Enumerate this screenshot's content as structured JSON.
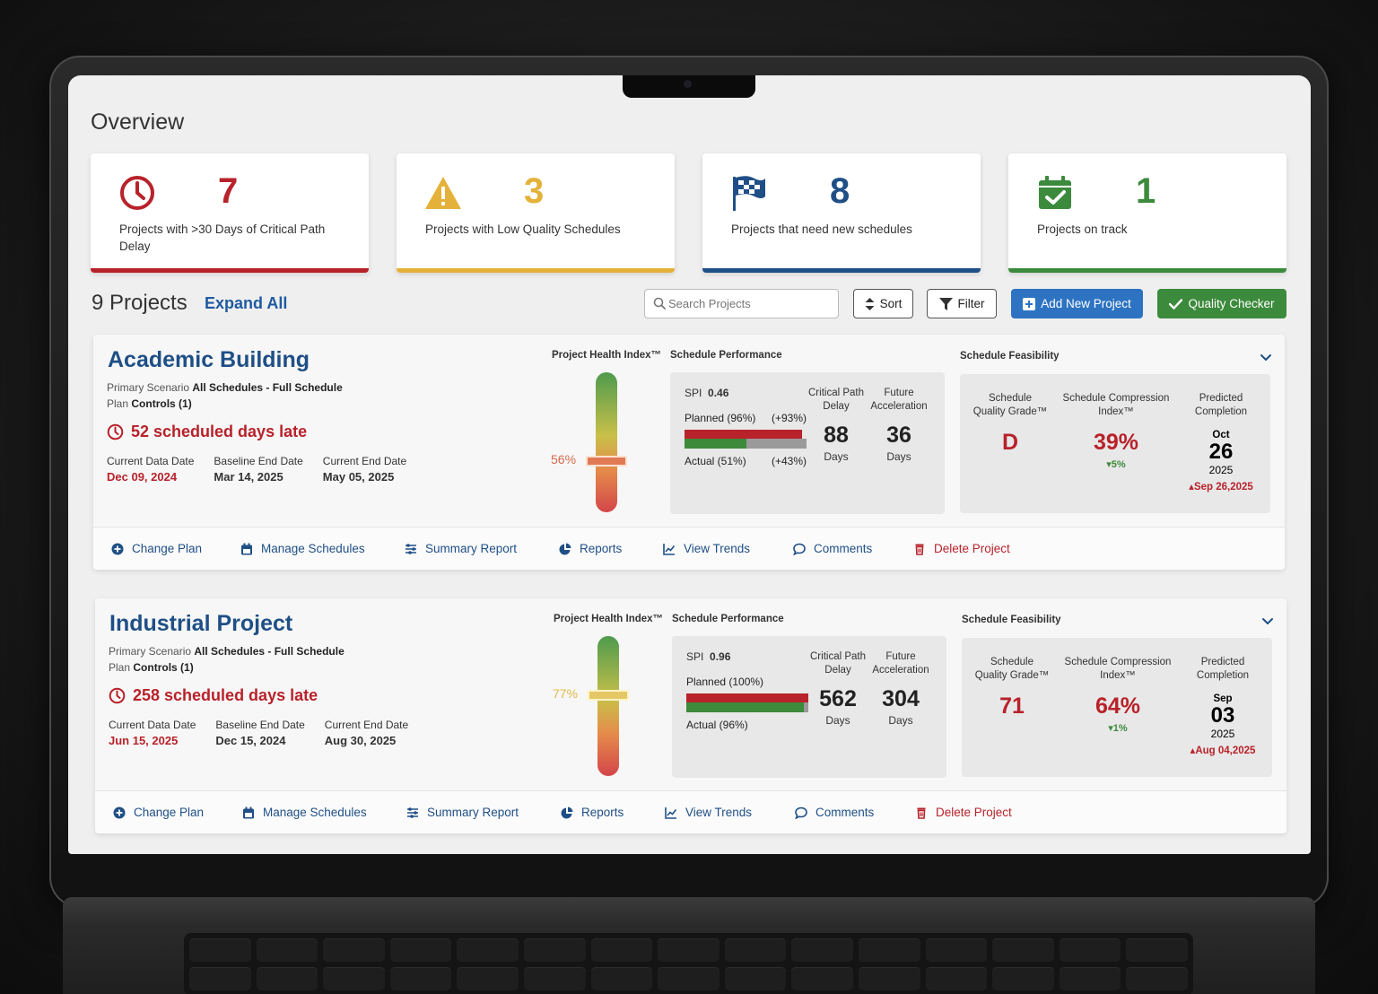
{
  "overview": {
    "title": "Overview"
  },
  "stats": [
    {
      "number": "7",
      "label": "Projects with >30 Days of Critical Path Delay",
      "color": "#b8222a",
      "icon": "clock-icon"
    },
    {
      "number": "3",
      "label": "Projects with Low Quality Schedules",
      "color": "#e4b23a",
      "icon": "warning-icon"
    },
    {
      "number": "8",
      "label": "Projects that need new schedules",
      "color": "#1f4f86",
      "icon": "checkered-flag-icon"
    },
    {
      "number": "1",
      "label": "Projects on track",
      "color": "#3c8a3c",
      "icon": "calendar-check-icon"
    }
  ],
  "toolbar": {
    "projects_count": "9 Projects",
    "expand_all": "Expand All",
    "search_placeholder": "Search Projects",
    "sort": "Sort",
    "filter": "Filter",
    "add_new": "Add New Project",
    "quality_checker": "Quality Checker"
  },
  "labels": {
    "primary_scenario": "Primary Scenario",
    "plan": "Plan",
    "current_data_date": "Current Data Date",
    "baseline_end_date": "Baseline End Date",
    "current_end_date": "Current End Date",
    "phi": "Project Health Index™",
    "schedule_performance": "Schedule Performance",
    "schedule_feasibility": "Schedule Feasibility",
    "spi": "SPI",
    "critical_path_delay_1": "Critical Path",
    "critical_path_delay_2": "Delay",
    "future_acceleration_1": "Future",
    "future_acceleration_2": "Acceleration",
    "days": "Days",
    "sqg_1": "Schedule",
    "sqg_2": "Quality Grade™",
    "sci_1": "Schedule Compression",
    "sci_2": "Index™",
    "predicted_1": "Predicted",
    "predicted_2": "Completion"
  },
  "actions": {
    "change_plan": "Change Plan",
    "manage_schedules": "Manage Schedules",
    "summary_report": "Summary Report",
    "reports": "Reports",
    "view_trends": "View Trends",
    "comments": "Comments",
    "delete_project": "Delete Project"
  },
  "projects": [
    {
      "name": "Academic Building",
      "scenario": "All Schedules - Full Schedule",
      "plan": "Controls (1)",
      "late": "52 scheduled days late",
      "current_data_date": "Dec 09, 2024",
      "baseline_end_date": "Mar 14, 2025",
      "current_end_date": "May 05, 2025",
      "health_pct": "56%",
      "health_value": 56,
      "spi": "0.46",
      "planned_label": "Planned (96%)",
      "planned_delta": "(+93%)",
      "actual_label": "Actual (51%)",
      "actual_delta": "(+43%)",
      "planned_pct": 96,
      "actual_pct": 51,
      "cp_delay": "88",
      "future_accel": "36",
      "quality_grade": "D",
      "compression": "39%",
      "compression_delta": "▾5%",
      "pred_month": "Oct",
      "pred_day": "26",
      "pred_year": "2025",
      "pred_prev": "▴Sep 26,2025"
    },
    {
      "name": "Industrial Project",
      "scenario": "All Schedules - Full Schedule",
      "plan": "Controls (1)",
      "late": "258 scheduled days late",
      "current_data_date": "Jun 15, 2025",
      "baseline_end_date": "Dec 15, 2024",
      "current_end_date": "Aug 30, 2025",
      "health_pct": "77%",
      "health_value": 77,
      "spi": "0.96",
      "planned_label": "Planned (100%)",
      "planned_delta": "",
      "actual_label": "Actual (96%)",
      "actual_delta": "",
      "planned_pct": 100,
      "actual_pct": 96,
      "cp_delay": "562",
      "future_accel": "304",
      "quality_grade": "71",
      "compression": "64%",
      "compression_delta": "▾1%",
      "pred_month": "Sep",
      "pred_day": "03",
      "pred_year": "2025",
      "pred_prev": "▴Aug 04,2025"
    }
  ],
  "colors": {
    "red": "#b8222a",
    "green": "#3c8a3c",
    "blue": "#1f4f86",
    "yellow": "#e4b23a"
  }
}
